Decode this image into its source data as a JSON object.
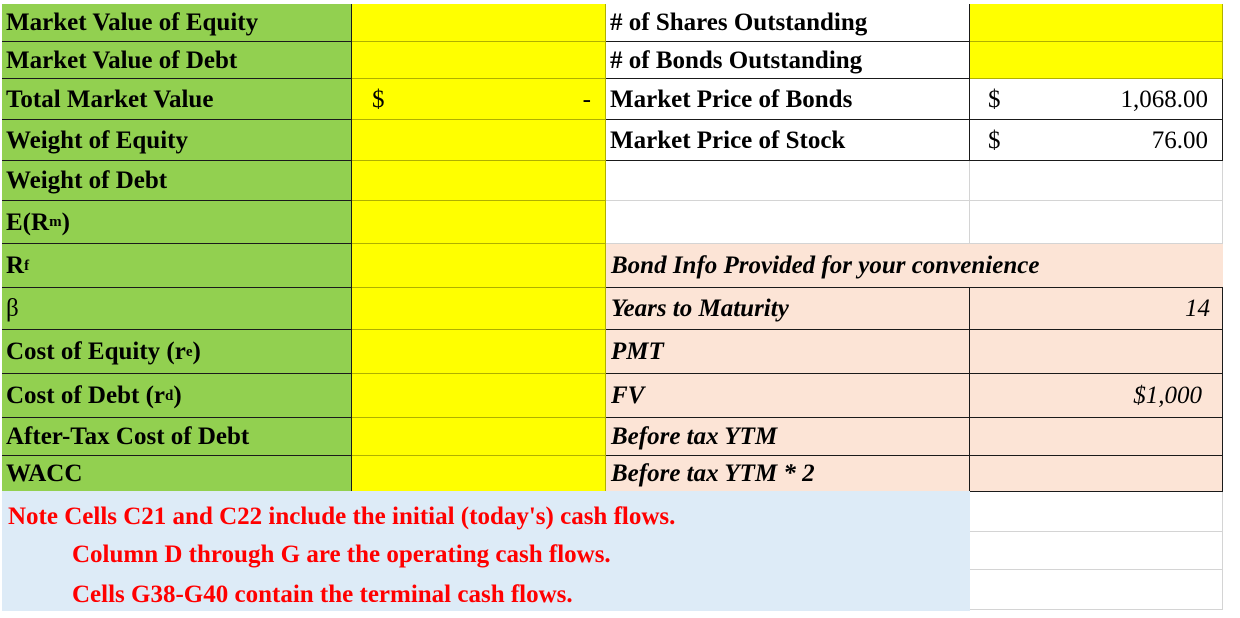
{
  "left_rows": [
    {
      "label": "Market Value of Equity"
    },
    {
      "label": "Market Value of Debt"
    },
    {
      "label": "Total Market Value"
    },
    {
      "label": "Weight of Equity"
    },
    {
      "label": "Weight of Debt"
    },
    {
      "label_main": "E(R",
      "label_sub": "m",
      "label_after": ")"
    },
    {
      "label_main": "R",
      "label_sub": "f",
      "label_after": ""
    },
    {
      "label": "β"
    },
    {
      "label_main": "Cost of Equity (r",
      "label_sub": "e",
      "label_after": ")"
    },
    {
      "label_main": "Cost of Debt (r",
      "label_sub": "d",
      "label_after": ")"
    },
    {
      "label": "After-Tax Cost of Debt"
    },
    {
      "label": "WACC"
    }
  ],
  "total_market_value": {
    "currency": "$",
    "value": "-"
  },
  "market_info": [
    {
      "label": "# of Shares Outstanding"
    },
    {
      "label": "# of Bonds Outstanding"
    },
    {
      "label": "Market Price of Bonds",
      "currency": "$",
      "value": "1,068.00"
    },
    {
      "label": "Market Price of Stock",
      "currency": "$",
      "value": "76.00"
    }
  ],
  "bond_info": {
    "heading": "Bond Info Provided for your convenience",
    "rows": [
      {
        "label": "Years to Maturity",
        "value": "14"
      },
      {
        "label": "PMT",
        "value": ""
      },
      {
        "label": "FV",
        "value": "$1,000"
      },
      {
        "label": "Before tax YTM",
        "value": ""
      },
      {
        "label": "Before tax YTM * 2",
        "value": ""
      }
    ]
  },
  "note": {
    "line1": "Note Cells C21 and C22 include the initial (today's) cash flows.",
    "line2": "Column D through G are the operating cash flows.",
    "line3": "Cells G38-G40 contain the terminal cash flows."
  },
  "colors": {
    "label_green": "#92d050",
    "input_yellow": "#ffff00",
    "bond_pink": "#fce4d6",
    "note_blue": "#ddebf7",
    "note_red": "#ff0000"
  }
}
